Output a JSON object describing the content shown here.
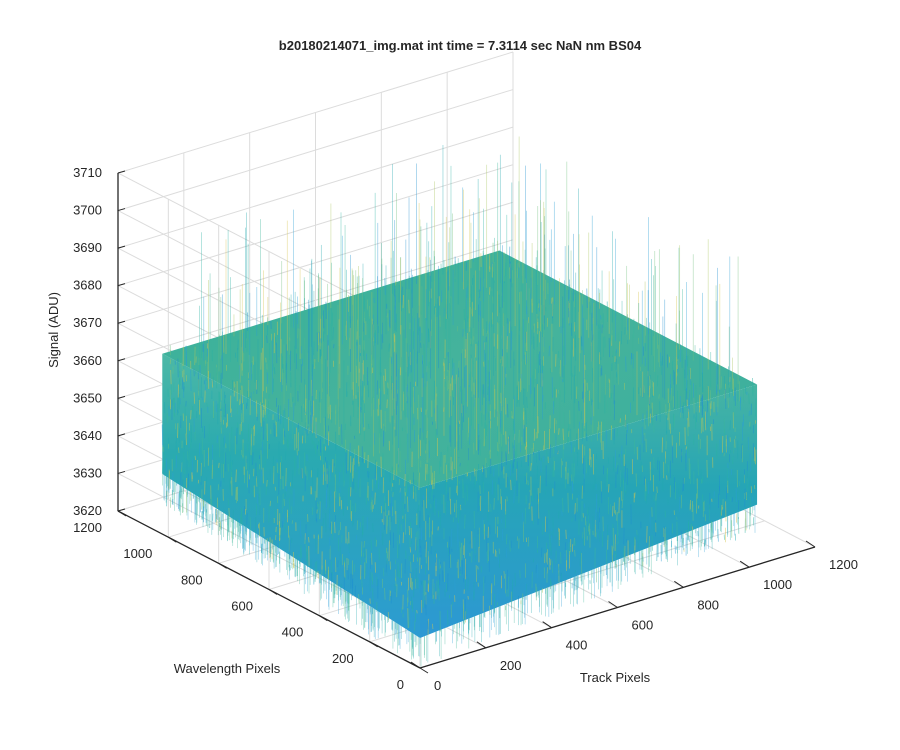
{
  "chart_data": {
    "type": "surface",
    "title": "b20180214071_img.mat int time = 7.3114 sec  NaN nm BS04",
    "xlabel": "Track Pixels",
    "ylabel": "Wavelength Pixels",
    "zlabel": "Signal (ADU)",
    "xlim": [
      0,
      1200
    ],
    "ylim": [
      0,
      1200
    ],
    "zlim": [
      3620,
      3710
    ],
    "x_ticks": [
      0,
      200,
      400,
      600,
      800,
      1000,
      1200
    ],
    "y_ticks": [
      0,
      200,
      400,
      600,
      800,
      1000,
      1200
    ],
    "z_ticks": [
      3620,
      3630,
      3640,
      3650,
      3660,
      3670,
      3680,
      3690,
      3700,
      3710
    ],
    "x_data_range": [
      0,
      1024
    ],
    "y_data_range": [
      0,
      1024
    ],
    "signal_mean": 3660,
    "signal_range": [
      3628,
      3703
    ],
    "grid": true,
    "colors": {
      "surface_low": "#2b9ed3",
      "surface_mid": "#22aaa9",
      "surface_high": "#d6c24e",
      "axis": "#262626",
      "grid": "#dcdcdc"
    }
  }
}
